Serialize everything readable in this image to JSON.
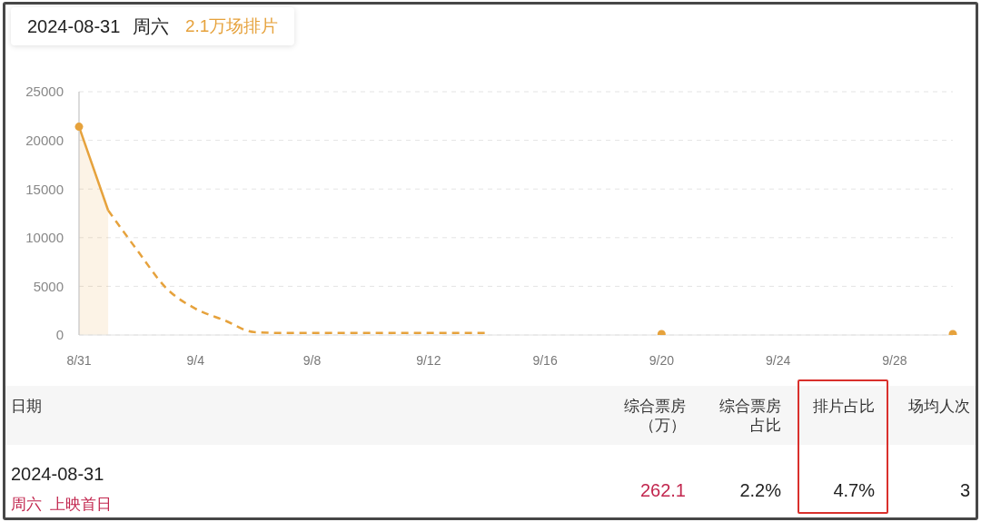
{
  "chart_data": [
    {
      "type": "line",
      "annotations": [
        "2024-08-31 周六",
        "2.1万场排片"
      ],
      "series": [
        {
          "type": "area",
          "color": "#e6a23c",
          "x": [
            "2024-08-31",
            "2024-09-01"
          ],
          "values": [
            21400,
            12800
          ]
        },
        {
          "type": "line",
          "color": "#e6a23c",
          "line_style": "dashed",
          "x": [
            "2024-09-01",
            "2024-09-02",
            "2024-09-03",
            "2024-09-04",
            "2024-09-05",
            "2024-09-06",
            "2024-09-07",
            "2024-09-08",
            "2024-09-09",
            "2024-09-10",
            "2024-09-11",
            "2024-09-12",
            "2024-09-13",
            "2024-09-14"
          ],
          "values": [
            12800,
            8700,
            4800,
            2700,
            1500,
            300,
            200,
            200,
            200,
            200,
            200,
            200,
            200,
            200
          ]
        },
        {
          "type": "scatter",
          "color": "#e6a23c",
          "marker": "circle",
          "x": [
            "2024-08-31",
            "2024-09-20",
            "2024-09-30"
          ],
          "values": [
            21400,
            100,
            100
          ]
        }
      ],
      "xlim": [
        "2024-08-31",
        "2024-09-30"
      ],
      "xticks": [
        {
          "value": "2024-08-31",
          "label": "8/31"
        },
        {
          "value": "2024-09-04",
          "label": "9/4"
        },
        {
          "value": "2024-09-08",
          "label": "9/8"
        },
        {
          "value": "2024-09-12",
          "label": "9/12"
        },
        {
          "value": "2024-09-16",
          "label": "9/16"
        },
        {
          "value": "2024-09-20",
          "label": "9/20"
        },
        {
          "value": "2024-09-24",
          "label": "9/24"
        },
        {
          "value": "2024-09-28",
          "label": "9/28"
        }
      ],
      "ylim": [
        0,
        25000
      ],
      "yticks": [
        0,
        5000,
        10000,
        15000,
        20000,
        25000
      ],
      "grid": "y"
    },
    {
      "type": "other",
      "categories": [
        "日期",
        "综合票房（万）",
        "综合票房占比",
        "排片占比",
        "场均人次"
      ],
      "value_labels": [
        "2024-08-31",
        "262.1",
        "2.2%",
        "4.7%",
        "3"
      ],
      "annotations": [
        "周六 上映首日"
      ]
    }
  ]
}
